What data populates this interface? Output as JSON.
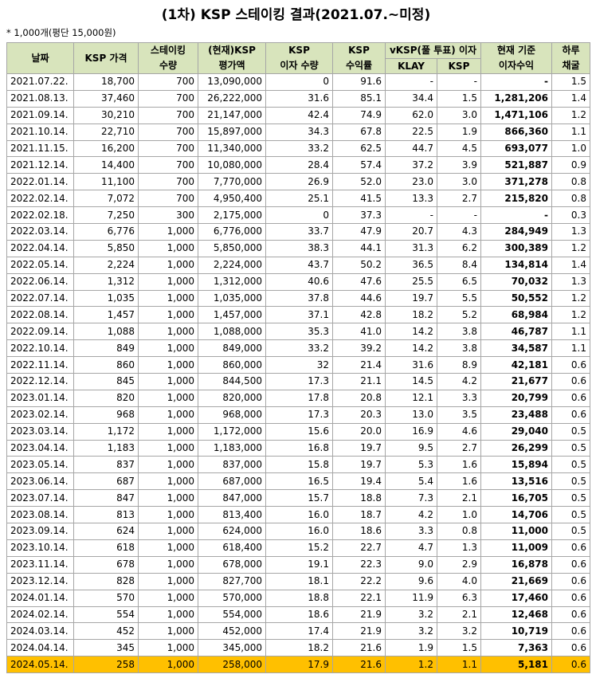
{
  "title": "(1차) KSP 스테이킹 결과(2021.07.~미정)",
  "note": "* 1,000개(평단 15,000원)",
  "table": {
    "header_top": [
      [
        "날짜"
      ],
      [
        "KSP 가격"
      ],
      [
        "스테이킹",
        "수량"
      ],
      [
        "(현재)KSP",
        "평가액"
      ],
      [
        "KSP",
        "이자 수량"
      ],
      [
        "KSP",
        "수익률"
      ],
      [
        "vKSP(풀 투표) 이자"
      ],
      [
        "현재 기준",
        "이자수익"
      ],
      [
        "하루",
        "채굴"
      ]
    ],
    "header_sub": [
      "KLAY",
      "KSP"
    ],
    "rows": [
      [
        "2021.07.22.",
        "18,700",
        "700",
        "13,090,000",
        "0",
        "91.6",
        "-",
        "-",
        "-",
        "1.5"
      ],
      [
        "2021.08.13.",
        "37,460",
        "700",
        "26,222,000",
        "31.6",
        "85.1",
        "34.4",
        "1.5",
        "1,281,206",
        "1.4"
      ],
      [
        "2021.09.14.",
        "30,210",
        "700",
        "21,147,000",
        "42.4",
        "74.9",
        "62.0",
        "3.0",
        "1,471,106",
        "1.2"
      ],
      [
        "2021.10.14.",
        "22,710",
        "700",
        "15,897,000",
        "34.3",
        "67.8",
        "22.5",
        "1.9",
        "866,360",
        "1.1"
      ],
      [
        "2021.11.15.",
        "16,200",
        "700",
        "11,340,000",
        "33.2",
        "62.5",
        "44.7",
        "4.5",
        "693,077",
        "1.0"
      ],
      [
        "2021.12.14.",
        "14,400",
        "700",
        "10,080,000",
        "28.4",
        "57.4",
        "37.2",
        "3.9",
        "521,887",
        "0.9"
      ],
      [
        "2022.01.14.",
        "11,100",
        "700",
        "7,770,000",
        "26.9",
        "52.0",
        "23.0",
        "3.0",
        "371,278",
        "0.8"
      ],
      [
        "2022.02.14.",
        "7,072",
        "700",
        "4,950,400",
        "25.1",
        "41.5",
        "13.3",
        "2.7",
        "215,820",
        "0.8"
      ],
      [
        "2022.02.18.",
        "7,250",
        "300",
        "2,175,000",
        "0",
        "37.3",
        "-",
        "-",
        "-",
        "0.3"
      ],
      [
        "2022.03.14.",
        "6,776",
        "1,000",
        "6,776,000",
        "33.7",
        "47.9",
        "20.7",
        "4.3",
        "284,949",
        "1.3"
      ],
      [
        "2022.04.14.",
        "5,850",
        "1,000",
        "5,850,000",
        "38.3",
        "44.1",
        "31.3",
        "6.2",
        "300,389",
        "1.2"
      ],
      [
        "2022.05.14.",
        "2,224",
        "1,000",
        "2,224,000",
        "43.7",
        "50.2",
        "36.5",
        "8.4",
        "134,814",
        "1.4"
      ],
      [
        "2022.06.14.",
        "1,312",
        "1,000",
        "1,312,000",
        "40.6",
        "47.6",
        "25.5",
        "6.5",
        "70,032",
        "1.3"
      ],
      [
        "2022.07.14.",
        "1,035",
        "1,000",
        "1,035,000",
        "37.8",
        "44.6",
        "19.7",
        "5.5",
        "50,552",
        "1.2"
      ],
      [
        "2022.08.14.",
        "1,457",
        "1,000",
        "1,457,000",
        "37.1",
        "42.8",
        "18.2",
        "5.2",
        "68,984",
        "1.2"
      ],
      [
        "2022.09.14.",
        "1,088",
        "1,000",
        "1,088,000",
        "35.3",
        "41.0",
        "14.2",
        "3.8",
        "46,787",
        "1.1"
      ],
      [
        "2022.10.14.",
        "849",
        "1,000",
        "849,000",
        "33.2",
        "39.2",
        "14.2",
        "3.8",
        "34,587",
        "1.1"
      ],
      [
        "2022.11.14.",
        "860",
        "1,000",
        "860,000",
        "32",
        "21.4",
        "31.6",
        "8.9",
        "42,181",
        "0.6"
      ],
      [
        "2022.12.14.",
        "845",
        "1,000",
        "844,500",
        "17.3",
        "21.1",
        "14.5",
        "4.2",
        "21,677",
        "0.6"
      ],
      [
        "2023.01.14.",
        "820",
        "1,000",
        "820,000",
        "17.8",
        "20.8",
        "12.1",
        "3.3",
        "20,799",
        "0.6"
      ],
      [
        "2023.02.14.",
        "968",
        "1,000",
        "968,000",
        "17.3",
        "20.3",
        "13.0",
        "3.5",
        "23,488",
        "0.6"
      ],
      [
        "2023.03.14.",
        "1,172",
        "1,000",
        "1,172,000",
        "15.6",
        "20.0",
        "16.9",
        "4.6",
        "29,040",
        "0.5"
      ],
      [
        "2023.04.14.",
        "1,183",
        "1,000",
        "1,183,000",
        "16.8",
        "19.7",
        "9.5",
        "2.7",
        "26,299",
        "0.5"
      ],
      [
        "2023.05.14.",
        "837",
        "1,000",
        "837,000",
        "15.8",
        "19.7",
        "5.3",
        "1.6",
        "15,894",
        "0.5"
      ],
      [
        "2023.06.14.",
        "687",
        "1,000",
        "687,000",
        "16.5",
        "19.4",
        "5.4",
        "1.6",
        "13,516",
        "0.5"
      ],
      [
        "2023.07.14.",
        "847",
        "1,000",
        "847,000",
        "15.7",
        "18.8",
        "7.3",
        "2.1",
        "16,705",
        "0.5"
      ],
      [
        "2023.08.14.",
        "813",
        "1,000",
        "813,400",
        "16.0",
        "18.7",
        "4.2",
        "1.0",
        "14,706",
        "0.5"
      ],
      [
        "2023.09.14.",
        "624",
        "1,000",
        "624,000",
        "16.0",
        "18.6",
        "3.3",
        "0.8",
        "11,000",
        "0.5"
      ],
      [
        "2023.10.14.",
        "618",
        "1,000",
        "618,400",
        "15.2",
        "22.7",
        "4.7",
        "1.3",
        "11,009",
        "0.6"
      ],
      [
        "2023.11.14.",
        "678",
        "1,000",
        "678,000",
        "19.1",
        "22.3",
        "9.0",
        "2.9",
        "16,878",
        "0.6"
      ],
      [
        "2023.12.14.",
        "828",
        "1,000",
        "827,700",
        "18.1",
        "22.2",
        "9.6",
        "4.0",
        "21,669",
        "0.6"
      ],
      [
        "2024.01.14.",
        "570",
        "1,000",
        "570,000",
        "18.8",
        "22.1",
        "11.9",
        "6.3",
        "17,460",
        "0.6"
      ],
      [
        "2024.02.14.",
        "554",
        "1,000",
        "554,000",
        "18.6",
        "21.9",
        "3.2",
        "2.1",
        "12,468",
        "0.6"
      ],
      [
        "2024.03.14.",
        "452",
        "1,000",
        "452,000",
        "17.4",
        "21.9",
        "3.2",
        "3.2",
        "10,719",
        "0.6"
      ],
      [
        "2024.04.14.",
        "345",
        "1,000",
        "345,000",
        "18.2",
        "21.6",
        "1.9",
        "1.5",
        "7,363",
        "0.6"
      ],
      [
        "2024.05.14.",
        "258",
        "1,000",
        "258,000",
        "17.9",
        "21.6",
        "1.2",
        "1.1",
        "5,181",
        "0.6"
      ]
    ]
  }
}
